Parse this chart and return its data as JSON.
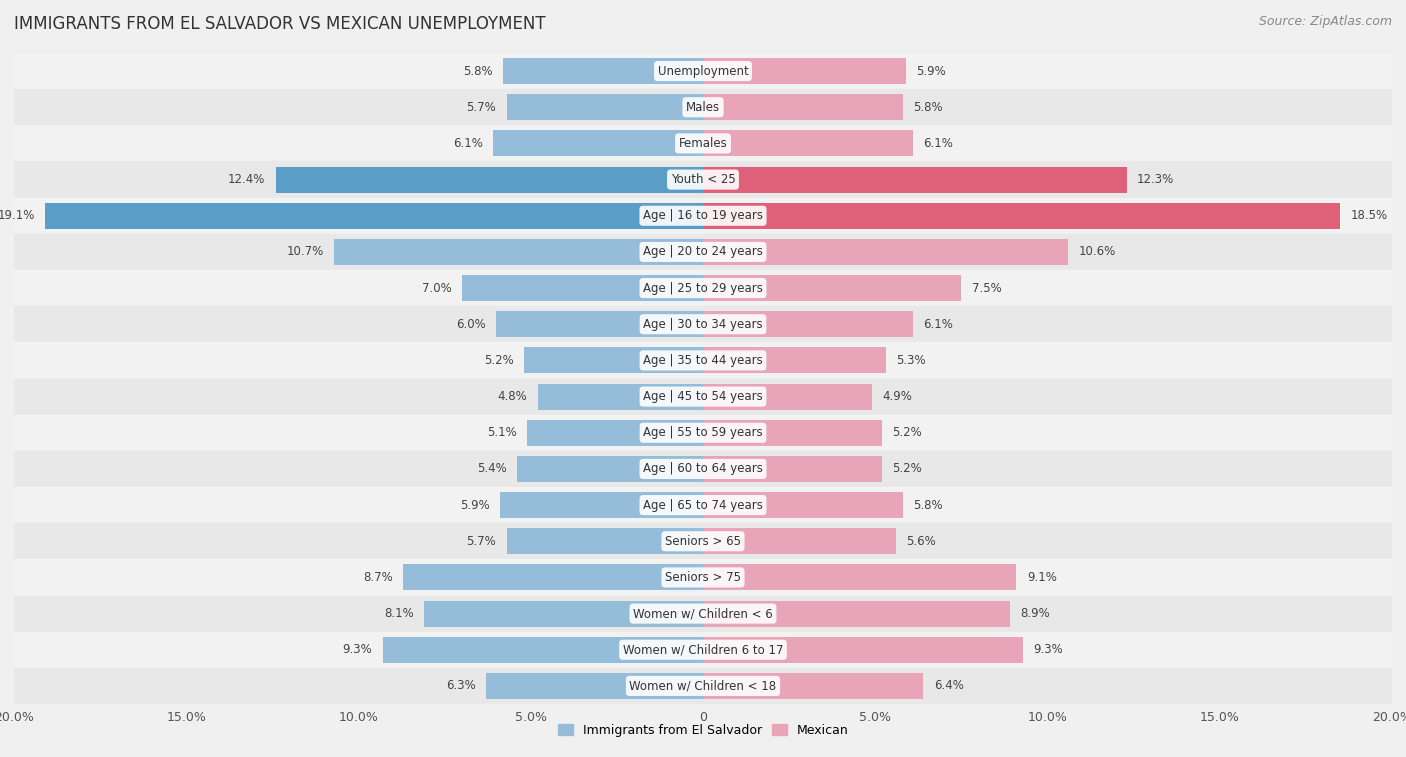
{
  "title": "IMMIGRANTS FROM EL SALVADOR VS MEXICAN UNEMPLOYMENT",
  "source": "Source: ZipAtlas.com",
  "categories": [
    "Unemployment",
    "Males",
    "Females",
    "Youth < 25",
    "Age | 16 to 19 years",
    "Age | 20 to 24 years",
    "Age | 25 to 29 years",
    "Age | 30 to 34 years",
    "Age | 35 to 44 years",
    "Age | 45 to 54 years",
    "Age | 55 to 59 years",
    "Age | 60 to 64 years",
    "Age | 65 to 74 years",
    "Seniors > 65",
    "Seniors > 75",
    "Women w/ Children < 6",
    "Women w/ Children 6 to 17",
    "Women w/ Children < 18"
  ],
  "el_salvador": [
    5.8,
    5.7,
    6.1,
    12.4,
    19.1,
    10.7,
    7.0,
    6.0,
    5.2,
    4.8,
    5.1,
    5.4,
    5.9,
    5.7,
    8.7,
    8.1,
    9.3,
    6.3
  ],
  "mexican": [
    5.9,
    5.8,
    6.1,
    12.3,
    18.5,
    10.6,
    7.5,
    6.1,
    5.3,
    4.9,
    5.2,
    5.2,
    5.8,
    5.6,
    9.1,
    8.9,
    9.3,
    6.4
  ],
  "el_salvador_color": "#95bcd8",
  "mexican_color": "#e8a4b8",
  "highlight_indices": [
    3,
    4
  ],
  "highlight_el_salvador_color": "#5a9ec8",
  "highlight_mexican_color": "#e0607a",
  "bar_height": 0.72,
  "xlim": 20.0,
  "row_bg_colors": [
    "#f2f2f2",
    "#e8e8e8"
  ],
  "background_color": "#f0f0f0",
  "label_fontsize": 8.5,
  "category_fontsize": 8.5,
  "title_fontsize": 12,
  "source_fontsize": 9
}
